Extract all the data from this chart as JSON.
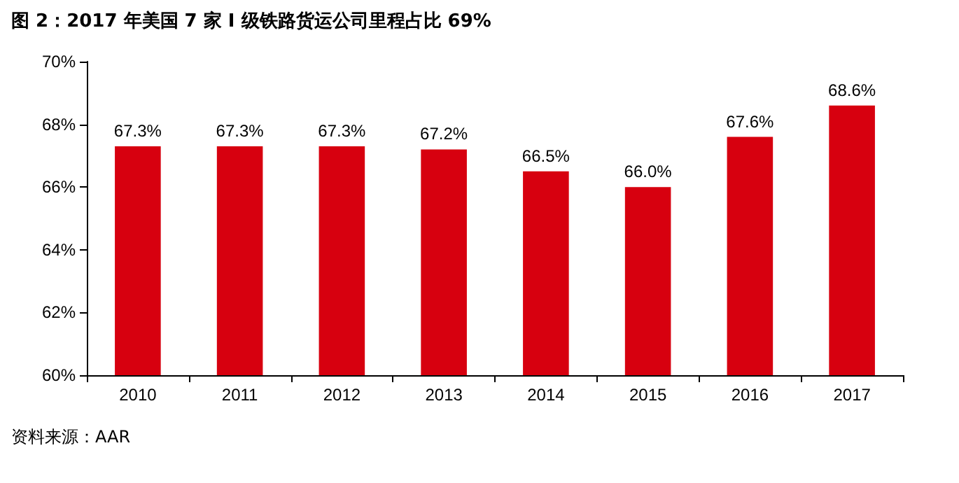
{
  "chart_data": {
    "type": "bar",
    "title": "图 2：2017 年美国 7 家 I 级铁路货运公司里程占比 69%",
    "categories": [
      "2010",
      "2011",
      "2012",
      "2013",
      "2014",
      "2015",
      "2016",
      "2017"
    ],
    "values": [
      67.3,
      67.3,
      67.3,
      67.2,
      66.5,
      66.0,
      67.6,
      68.6
    ],
    "value_labels": [
      "67.3%",
      "67.3%",
      "67.3%",
      "67.2%",
      "66.5%",
      "66.0%",
      "67.6%",
      "68.6%"
    ],
    "color": "#d7000f",
    "ylim": [
      60,
      70
    ],
    "yticks": [
      {
        "value": 60,
        "label": "60%"
      },
      {
        "value": 62,
        "label": "62%"
      },
      {
        "value": 64,
        "label": "64%"
      },
      {
        "value": 66,
        "label": "66%"
      },
      {
        "value": 68,
        "label": "68%"
      },
      {
        "value": 70,
        "label": "70%"
      }
    ],
    "grid": false,
    "annotations": [
      "资料来源：AAR"
    ]
  }
}
